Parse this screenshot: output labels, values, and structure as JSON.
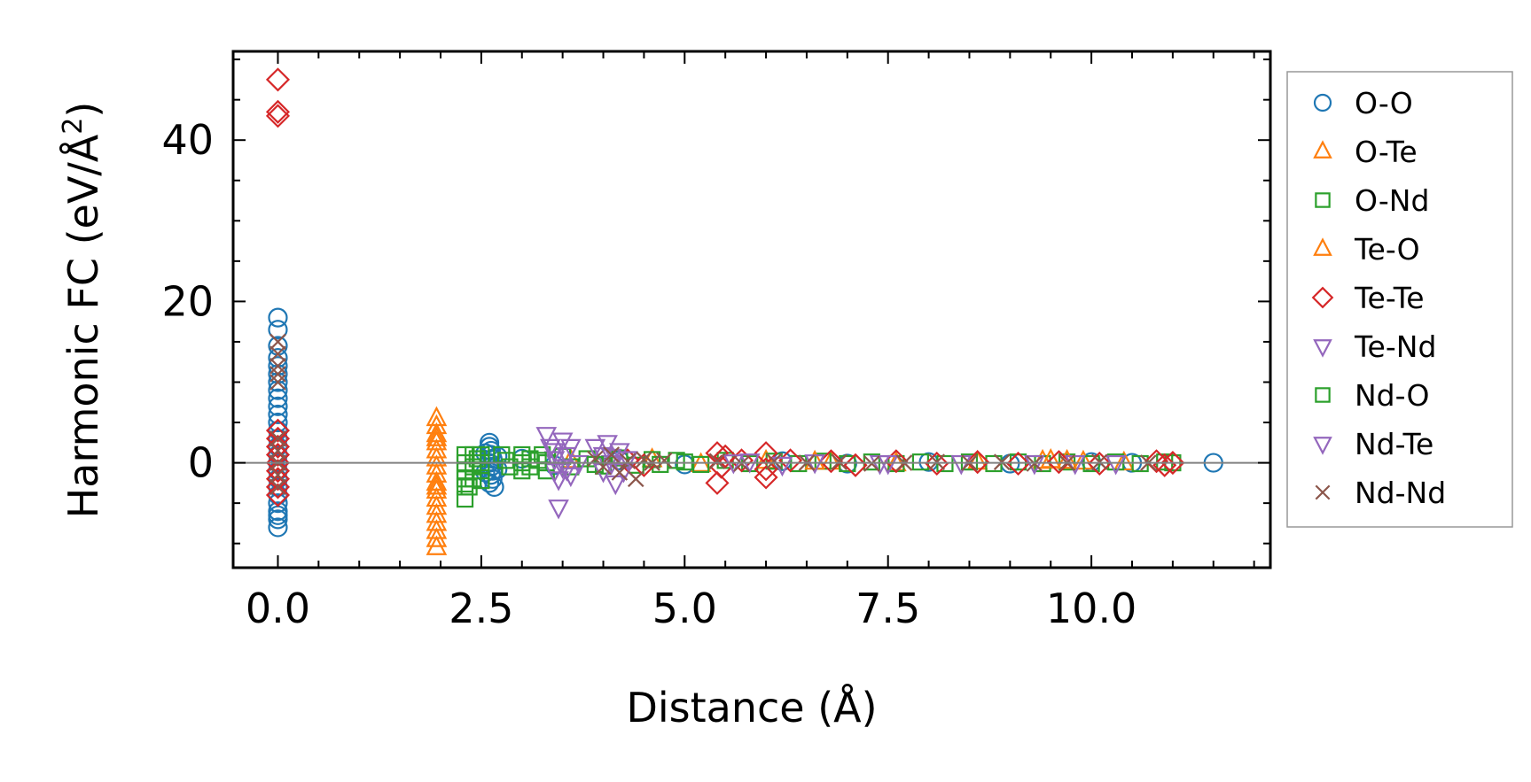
{
  "chart_data": {
    "type": "scatter",
    "xlabel": "Distance (Å)",
    "ylabel_main": "Harmonic FC (eV/Å",
    "ylabel_sup": "2",
    "ylabel_close": ")",
    "xlim": [
      -0.55,
      12.2
    ],
    "ylim": [
      -13,
      51
    ],
    "xticks": [
      0.0,
      2.5,
      5.0,
      7.5,
      10.0
    ],
    "xtick_labels": [
      "0.0",
      "2.5",
      "5.0",
      "7.5",
      "10.0"
    ],
    "yticks": [
      0,
      20,
      40
    ],
    "ytick_labels": [
      "0",
      "20",
      "40"
    ],
    "zero_line": true,
    "legend_position": "right-outside-top",
    "series": [
      {
        "name": "O-O",
        "marker": "circle",
        "color": "#1f77b4",
        "points": [
          [
            0,
            18
          ],
          [
            0,
            16.5
          ],
          [
            0,
            14.5
          ],
          [
            0,
            13
          ],
          [
            0,
            12
          ],
          [
            0,
            11
          ],
          [
            0,
            10
          ],
          [
            0,
            9
          ],
          [
            0,
            8
          ],
          [
            0,
            7
          ],
          [
            0,
            6
          ],
          [
            0,
            5
          ],
          [
            0,
            4
          ],
          [
            0,
            3
          ],
          [
            0,
            2
          ],
          [
            0,
            1
          ],
          [
            0,
            0
          ],
          [
            0,
            -1
          ],
          [
            0,
            -2
          ],
          [
            0,
            -3
          ],
          [
            0,
            -4
          ],
          [
            0,
            -5
          ],
          [
            0,
            -6
          ],
          [
            0,
            -6.5
          ],
          [
            0,
            -7
          ],
          [
            0,
            -8
          ],
          [
            2.6,
            2.5
          ],
          [
            2.6,
            2
          ],
          [
            2.62,
            1.5
          ],
          [
            2.62,
            1
          ],
          [
            2.64,
            0.5
          ],
          [
            2.6,
            0
          ],
          [
            2.62,
            -0.5
          ],
          [
            2.64,
            -1
          ],
          [
            2.62,
            -1.5
          ],
          [
            2.64,
            -2
          ],
          [
            2.6,
            -2.5
          ],
          [
            2.66,
            -3
          ],
          [
            2.55,
            1.2
          ],
          [
            2.55,
            -1.2
          ],
          [
            2.7,
            0.8
          ],
          [
            2.7,
            -0.8
          ],
          [
            3.0,
            0.5
          ],
          [
            3.4,
            -0.3
          ],
          [
            4.2,
            0.3
          ],
          [
            5.0,
            -0.2
          ],
          [
            6.2,
            0.2
          ],
          [
            7.0,
            -0.1
          ],
          [
            8.0,
            0.1
          ],
          [
            9.0,
            -0.1
          ],
          [
            10.0,
            0.1
          ],
          [
            10.5,
            0
          ],
          [
            11.5,
            0
          ]
        ]
      },
      {
        "name": "O-Te",
        "marker": "triangle-up",
        "color": "#ff7f0e",
        "points": [
          [
            1.95,
            5.5
          ],
          [
            1.95,
            4.5
          ],
          [
            1.95,
            3.5
          ],
          [
            1.95,
            2.5
          ],
          [
            1.95,
            1.5
          ],
          [
            1.95,
            0.5
          ],
          [
            1.95,
            -0.5
          ],
          [
            1.95,
            -1.5
          ],
          [
            1.95,
            -2.5
          ],
          [
            1.95,
            -3.5
          ],
          [
            1.95,
            -4.5
          ],
          [
            1.95,
            -5.5
          ],
          [
            1.95,
            -6.5
          ],
          [
            1.95,
            -7.5
          ],
          [
            1.95,
            -8.5
          ],
          [
            1.95,
            -9.5
          ],
          [
            1.95,
            -10.5
          ],
          [
            3.6,
            0.3
          ],
          [
            4.6,
            0.4
          ],
          [
            5.2,
            -0.2
          ],
          [
            6.0,
            0.2
          ],
          [
            6.8,
            0.1
          ],
          [
            7.6,
            -0.1
          ],
          [
            8.6,
            0.1
          ],
          [
            9.4,
            0.2
          ],
          [
            9.9,
            0.1
          ],
          [
            10.4,
            0
          ]
        ]
      },
      {
        "name": "O-Nd",
        "marker": "square",
        "color": "#2ca02c",
        "points": [
          [
            2.3,
            1
          ],
          [
            2.3,
            0
          ],
          [
            2.3,
            -1
          ],
          [
            2.3,
            -2
          ],
          [
            2.3,
            -3
          ],
          [
            2.3,
            -4.5
          ],
          [
            2.4,
            1
          ],
          [
            2.4,
            -0.5
          ],
          [
            2.4,
            -2
          ],
          [
            2.5,
            1
          ],
          [
            2.5,
            0
          ],
          [
            2.5,
            -1
          ],
          [
            2.5,
            -2.2
          ],
          [
            2.75,
            1
          ],
          [
            2.8,
            0.3
          ],
          [
            2.85,
            -0.5
          ],
          [
            3.0,
            1
          ],
          [
            3.0,
            0
          ],
          [
            3.0,
            -1
          ],
          [
            3.1,
            0.5
          ],
          [
            3.1,
            -0.5
          ],
          [
            3.25,
            1
          ],
          [
            3.3,
            0
          ],
          [
            3.3,
            -1
          ],
          [
            3.5,
            0.8
          ],
          [
            3.6,
            -0.5
          ],
          [
            3.8,
            0.5
          ],
          [
            4.0,
            -0.4
          ],
          [
            4.2,
            0.6
          ],
          [
            4.4,
            -0.3
          ],
          [
            4.6,
            0.4
          ],
          [
            4.7,
            -0.2
          ],
          [
            4.9,
            0.3
          ],
          [
            5.2,
            -0.2
          ],
          [
            5.5,
            0.3
          ],
          [
            5.8,
            -0.1
          ],
          [
            6.1,
            0.2
          ],
          [
            6.4,
            -0.1
          ],
          [
            6.7,
            0.2
          ],
          [
            7.0,
            -0.1
          ],
          [
            7.3,
            0.1
          ],
          [
            7.6,
            -0.1
          ],
          [
            7.9,
            0.1
          ],
          [
            8.2,
            -0.1
          ],
          [
            8.5,
            0.1
          ],
          [
            8.8,
            -0.1
          ],
          [
            9.1,
            0.1
          ],
          [
            9.4,
            -0.1
          ],
          [
            9.7,
            0.1
          ],
          [
            10.0,
            -0.1
          ],
          [
            10.3,
            0.1
          ],
          [
            10.6,
            -0.1
          ],
          [
            10.9,
            0.1
          ],
          [
            11.0,
            0
          ]
        ]
      },
      {
        "name": "Te-O",
        "marker": "triangle-up",
        "color": "#ff7f0e",
        "points": [
          [
            1.95,
            3
          ],
          [
            1.95,
            -3
          ],
          [
            6.6,
            0.1
          ],
          [
            9.5,
            0.3
          ],
          [
            9.7,
            0.2
          ]
        ]
      },
      {
        "name": "Te-Te",
        "marker": "diamond",
        "color": "#d62728",
        "points": [
          [
            0,
            47.5
          ],
          [
            0,
            43.5
          ],
          [
            0,
            43
          ],
          [
            0,
            4
          ],
          [
            0,
            3
          ],
          [
            0,
            2
          ],
          [
            0,
            1
          ],
          [
            0,
            0
          ],
          [
            0,
            -1
          ],
          [
            0,
            -2
          ],
          [
            0,
            -3
          ],
          [
            0,
            -4
          ],
          [
            4.3,
            0.3
          ],
          [
            4.5,
            -0.3
          ],
          [
            5.4,
            1.2
          ],
          [
            5.45,
            -0.5
          ],
          [
            5.4,
            -2.5
          ],
          [
            5.5,
            0.8
          ],
          [
            5.7,
            0.3
          ],
          [
            6.0,
            1.2
          ],
          [
            6.0,
            -0.8
          ],
          [
            6.0,
            -1.8
          ],
          [
            6.3,
            0.3
          ],
          [
            6.8,
            0.2
          ],
          [
            7.1,
            -0.3
          ],
          [
            7.6,
            0.2
          ],
          [
            8.1,
            -0.1
          ],
          [
            8.6,
            0.1
          ],
          [
            9.1,
            -0.1
          ],
          [
            9.6,
            0.1
          ],
          [
            10.1,
            -0.1
          ],
          [
            10.8,
            0.2
          ],
          [
            10.9,
            -0.3
          ],
          [
            11.0,
            0
          ]
        ]
      },
      {
        "name": "Te-Nd",
        "marker": "triangle-down",
        "color": "#9467bd",
        "points": [
          [
            3.3,
            3.5
          ],
          [
            3.35,
            2
          ],
          [
            3.4,
            0.5
          ],
          [
            3.4,
            -1
          ],
          [
            3.45,
            -2
          ],
          [
            3.5,
            2.8
          ],
          [
            3.5,
            -0.5
          ],
          [
            3.55,
            1
          ],
          [
            3.6,
            -1.5
          ],
          [
            3.6,
            2
          ],
          [
            3.45,
            -5.5
          ],
          [
            3.7,
            0
          ],
          [
            3.9,
            2
          ],
          [
            4.0,
            1
          ],
          [
            4.0,
            -1
          ],
          [
            4.05,
            2.5
          ],
          [
            4.1,
            0
          ],
          [
            4.15,
            -2.5
          ],
          [
            4.2,
            1.5
          ],
          [
            4.25,
            -1
          ],
          [
            4.3,
            0.5
          ],
          [
            5.8,
            0.2
          ],
          [
            6.2,
            -0.2
          ],
          [
            6.6,
            0.1
          ],
          [
            7.4,
            0
          ],
          [
            8.4,
            0
          ],
          [
            9.3,
            0
          ],
          [
            10.3,
            0
          ]
        ]
      },
      {
        "name": "Nd-O",
        "marker": "square",
        "color": "#2ca02c",
        "points": [
          [
            2.35,
            -3
          ],
          [
            2.45,
            0.5
          ],
          [
            3.2,
            0.3
          ],
          [
            3.9,
            -0.2
          ],
          [
            5.0,
            0.1
          ]
        ]
      },
      {
        "name": "Nd-Te",
        "marker": "triangle-down",
        "color": "#9467bd",
        "points": [
          [
            3.4,
            1.5
          ],
          [
            3.55,
            -0.8
          ],
          [
            4.1,
            0.8
          ],
          [
            5.6,
            0.1
          ],
          [
            7.5,
            0
          ],
          [
            9.8,
            0
          ]
        ]
      },
      {
        "name": "Nd-Nd",
        "marker": "x",
        "color": "#8c564b",
        "points": [
          [
            0,
            15
          ],
          [
            0,
            13.5
          ],
          [
            0,
            12
          ],
          [
            0,
            11
          ],
          [
            0,
            10
          ],
          [
            0,
            3
          ],
          [
            0,
            1.5
          ],
          [
            0,
            0
          ],
          [
            0,
            -1.5
          ],
          [
            0,
            -3
          ],
          [
            3.9,
            0.5
          ],
          [
            4.0,
            -0.5
          ],
          [
            4.1,
            1
          ],
          [
            4.2,
            -1.2
          ],
          [
            4.3,
            0.2
          ],
          [
            4.4,
            -2
          ],
          [
            4.5,
            0.4
          ],
          [
            4.6,
            0
          ],
          [
            4.75,
            0.3
          ],
          [
            5.4,
            0.2
          ],
          [
            5.7,
            -0.1
          ],
          [
            6.1,
            0.2
          ],
          [
            6.5,
            0
          ],
          [
            6.9,
            0.1
          ],
          [
            7.3,
            -0.1
          ],
          [
            7.7,
            0
          ],
          [
            8.1,
            0.1
          ],
          [
            8.5,
            0
          ],
          [
            8.9,
            0.1
          ],
          [
            9.3,
            -0.1
          ],
          [
            9.7,
            0
          ],
          [
            10.1,
            0.1
          ],
          [
            10.7,
            0
          ]
        ]
      }
    ]
  }
}
